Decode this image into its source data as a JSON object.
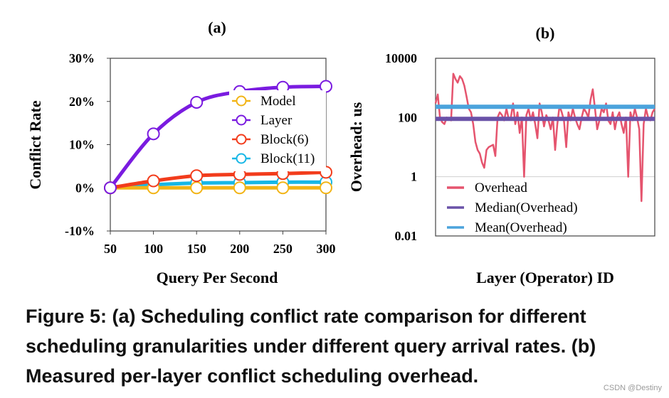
{
  "chart_data": [
    {
      "panel": "(a)",
      "type": "line",
      "title": "(a)",
      "xlabel": "Query Per Second",
      "ylabel": "Conflict Rate",
      "x": [
        50,
        100,
        150,
        200,
        250,
        300
      ],
      "xlim": [
        50,
        300
      ],
      "ylim": [
        -10,
        30
      ],
      "ytick_labels": [
        "-10%",
        "0%",
        "10%",
        "20%",
        "30%"
      ],
      "xtick_labels": [
        "50",
        "100",
        "150",
        "200",
        "250",
        "300"
      ],
      "grid": false,
      "legend_position": "right-center",
      "series": [
        {
          "name": "Model",
          "values": [
            0,
            0,
            0,
            0,
            0,
            0
          ],
          "color": "#f2b416"
        },
        {
          "name": "Layer",
          "values": [
            0,
            12.5,
            19.8,
            22.3,
            23.3,
            23.5
          ],
          "color": "#7a1be0"
        },
        {
          "name": "Block(6)",
          "values": [
            0,
            1.6,
            2.8,
            3.1,
            3.3,
            3.6
          ],
          "color": "#f23c1c"
        },
        {
          "name": "Block(11)",
          "values": [
            0,
            0.7,
            1.1,
            1.2,
            1.3,
            1.3
          ],
          "color": "#17b7e6"
        }
      ]
    },
    {
      "panel": "(b)",
      "type": "line",
      "title": "(b)",
      "xlabel": "Layer (Operator) ID",
      "ylabel": "Overhead: us",
      "yscale": "log",
      "ylim": [
        0.01,
        10000
      ],
      "ytick_labels": [
        "0.01",
        "1",
        "100",
        "10000"
      ],
      "grid": true,
      "legend_position": "bottom-left",
      "series": [
        {
          "name": "Overhead",
          "color": "#e5546e",
          "values": [
            300,
            600,
            100,
            70,
            60,
            100,
            90,
            80,
            3000,
            2000,
            1500,
            2500,
            2000,
            1200,
            500,
            200,
            150,
            60,
            15,
            8,
            6,
            3,
            2,
            8,
            10,
            11,
            12,
            5,
            100,
            150,
            120,
            80,
            200,
            90,
            100,
            300,
            60,
            150,
            30,
            100,
            1,
            120,
            200,
            80,
            150,
            60,
            20,
            300,
            150,
            50,
            120,
            80,
            40,
            100,
            8,
            60,
            250,
            150,
            80,
            10,
            150,
            80,
            200,
            100,
            60,
            40,
            100,
            200,
            150,
            100,
            400,
            900,
            200,
            40,
            80,
            200,
            150,
            300,
            80,
            60,
            150,
            40,
            100,
            150,
            60,
            30,
            100,
            1,
            150,
            80,
            200,
            100,
            40,
            0.15,
            60,
            200,
            100,
            80,
            150,
            200
          ]
        },
        {
          "name": "Median(Overhead)",
          "values": [
            90
          ],
          "color": "#6a52a8"
        },
        {
          "name": "Mean(Overhead)",
          "values": [
            230
          ],
          "color": "#4ba3dc"
        }
      ]
    }
  ],
  "caption": {
    "line1": "Figure 5:  (a) Scheduling conflict rate comparison for different",
    "line2": "scheduling granularities under different query arrival rates. (b)",
    "line3": "Measured per-layer conflict scheduling overhead."
  },
  "watermark": "CSDN @Destiny"
}
